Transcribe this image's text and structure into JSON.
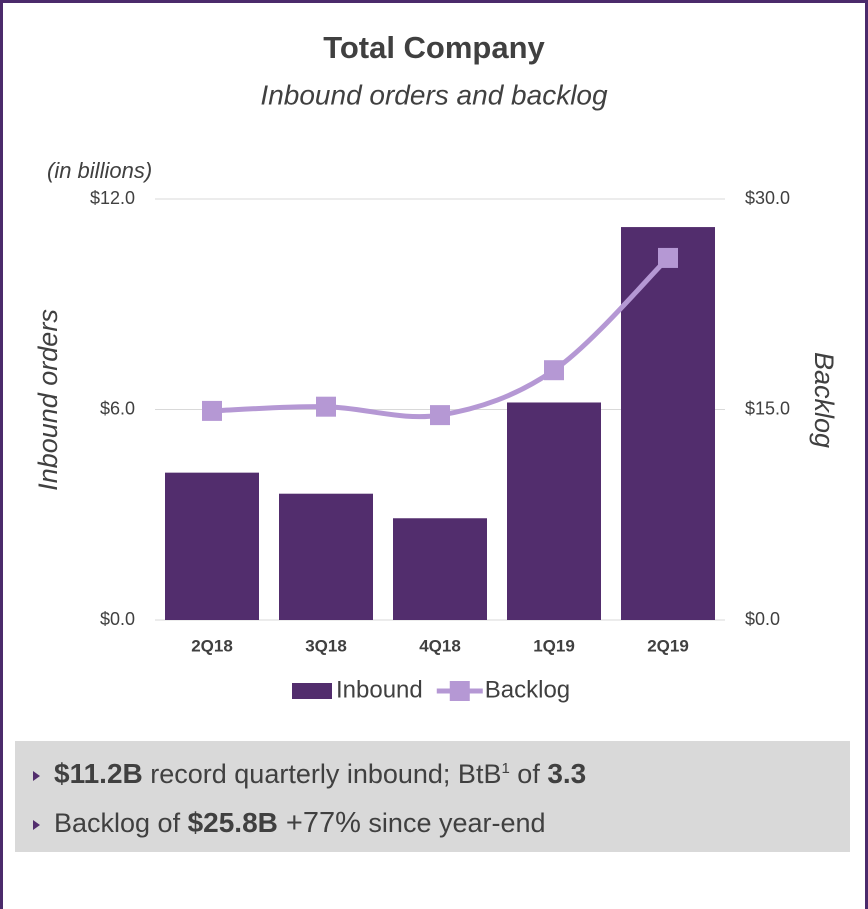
{
  "chart_data": {
    "type": "bar",
    "title": "Total Company",
    "subtitle": "Inbound orders and backlog",
    "unit_note": "(in billions)",
    "ylabel": "Inbound orders",
    "y2label": "Backlog",
    "categories": [
      "2Q18",
      "3Q18",
      "4Q18",
      "1Q19",
      "2Q19"
    ],
    "series": [
      {
        "name": "Inbound",
        "color": "#522d6d",
        "values": [
          4.2,
          3.6,
          2.9,
          6.2,
          11.2
        ]
      },
      {
        "name": "Backlog",
        "color": "#b598d4",
        "type": "line",
        "smooth": true,
        "axis": "y2",
        "values": [
          14.9,
          15.2,
          14.6,
          17.8,
          25.8
        ]
      }
    ],
    "ylim": [
      0,
      12
    ],
    "yticks": [
      {
        "value": 0,
        "label": "$0.0"
      },
      {
        "value": 6,
        "label": "$6.0"
      },
      {
        "value": 12,
        "label": "$12.0"
      }
    ],
    "y2lim": [
      0,
      30
    ],
    "y2ticks": [
      {
        "value": 0,
        "label": "$0.0"
      },
      {
        "value": 15,
        "label": "$15.0"
      },
      {
        "value": 30,
        "label": "$30.0"
      }
    ],
    "grid": true,
    "legend": "bottom"
  },
  "notes": [
    [
      {
        "text": "$11.2B",
        "style": "bold"
      },
      {
        "text": " record quarterly inbound; BtB"
      },
      {
        "text": "1",
        "style": "sup"
      },
      {
        "text": " of "
      },
      {
        "text": "3.3",
        "style": "bold"
      }
    ],
    [
      {
        "text": "Backlog of "
      },
      {
        "text": "$25.8B",
        "style": "bold"
      },
      {
        "text": " +77%",
        "style": "large"
      },
      {
        "text": " since year-end"
      }
    ]
  ]
}
